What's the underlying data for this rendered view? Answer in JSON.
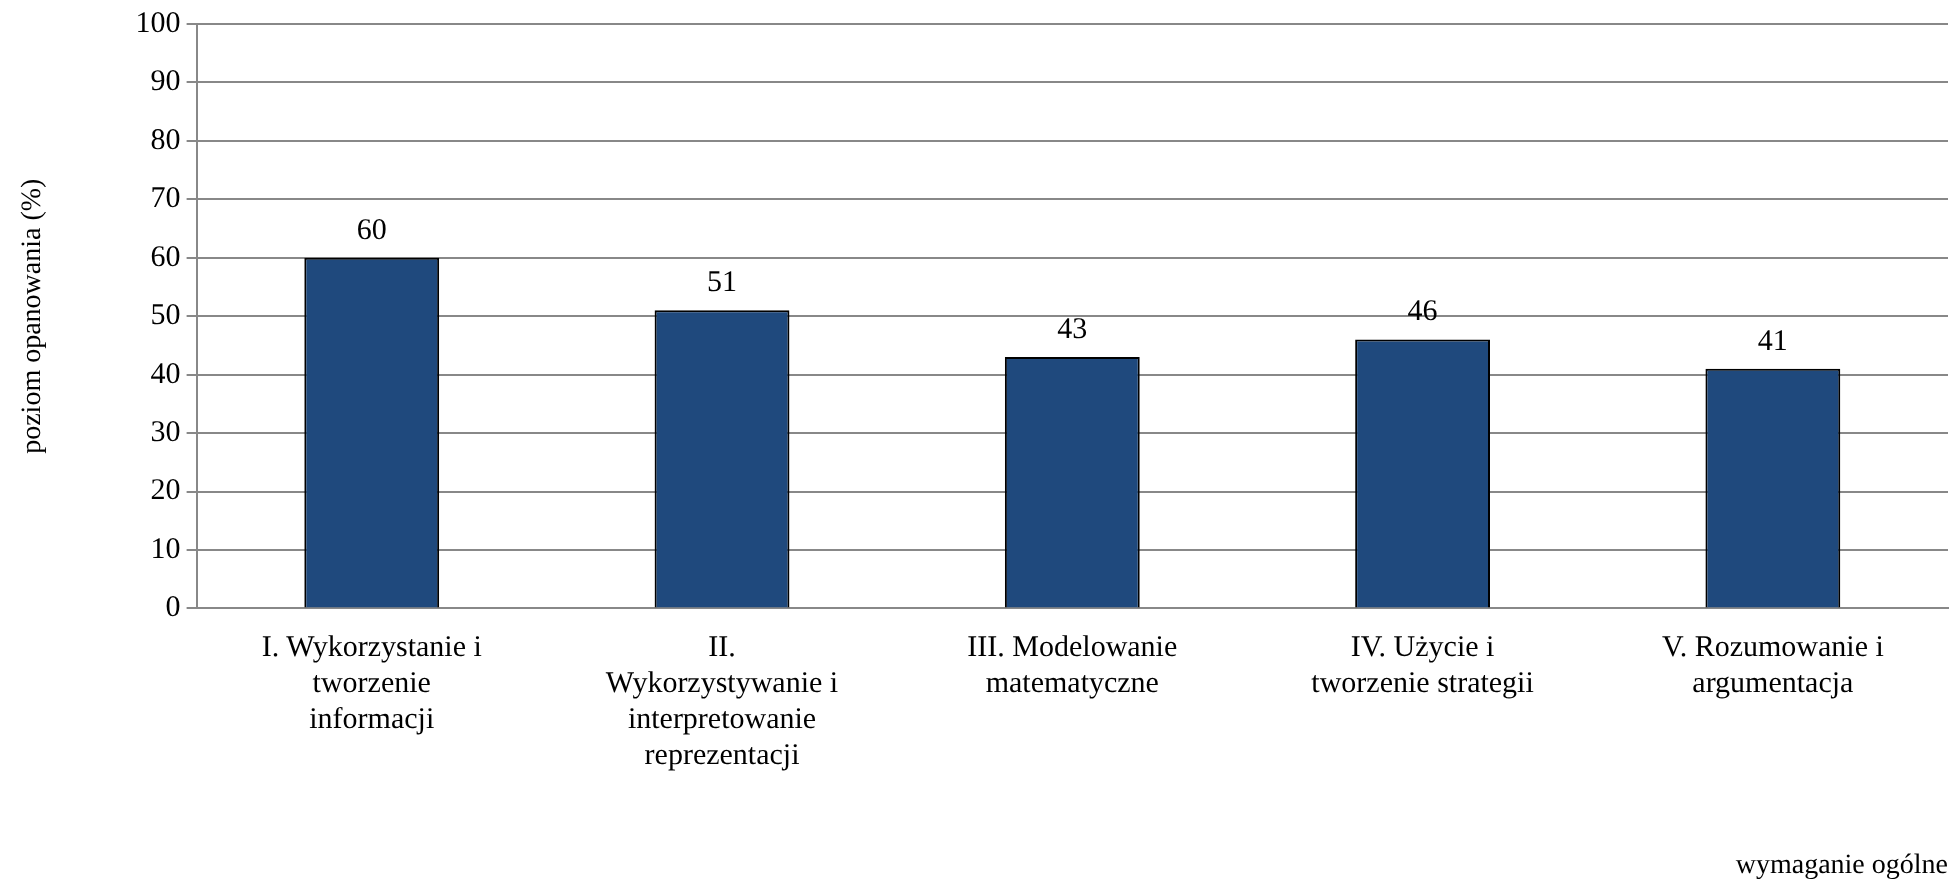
{
  "chart_data": {
    "type": "bar",
    "xlabel": "wymaganie ogólne",
    "ylabel": "poziom opanowania (%)",
    "categories": [
      "I. Wykorzystanie i tworzenie informacji",
      "II. Wykorzystywanie i interpretowanie reprezentacji",
      "III. Modelowanie matematyczne",
      "IV. Użycie i tworzenie strategii",
      "V. Rozumowanie i argumentacja"
    ],
    "values": [
      60,
      51,
      43,
      46,
      41
    ],
    "color": "#1f497d",
    "ylim": [
      0,
      100
    ],
    "yticks": [
      0,
      10,
      20,
      30,
      40,
      50,
      60,
      70,
      80,
      90,
      100
    ],
    "grid": "y",
    "data_labels": true,
    "legend": false
  }
}
